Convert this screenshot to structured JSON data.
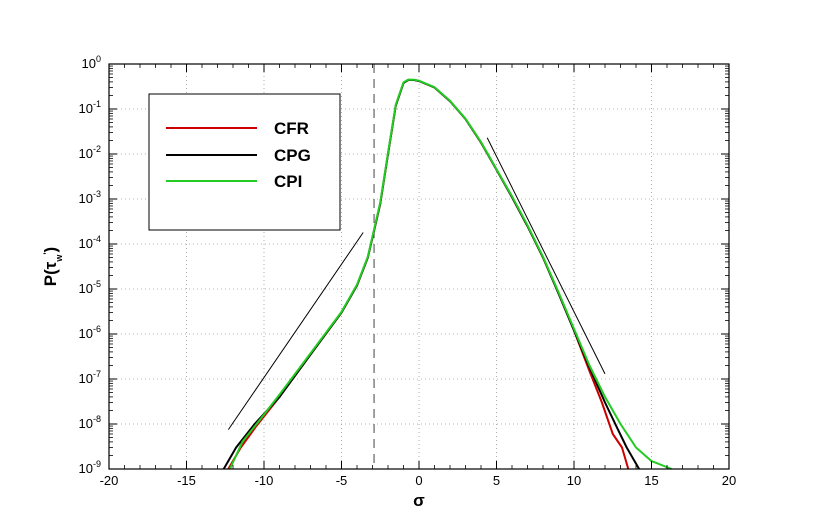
{
  "chart_data": {
    "type": "line",
    "xlabel": "σ",
    "ylabel": {
      "base": "P(τ",
      "sub": "w",
      "sup": "'",
      "close": ")"
    },
    "xlim": [
      -20,
      20
    ],
    "ylim_exponent": [
      -9,
      0
    ],
    "yscale": "log",
    "grid": true,
    "legend_position": "top-left",
    "xticks": [
      -20,
      -15,
      -10,
      -5,
      0,
      5,
      10,
      15,
      20
    ],
    "yticks": [
      {
        "base": "10",
        "exp": "0"
      },
      {
        "base": "10",
        "exp": "-1"
      },
      {
        "base": "10",
        "exp": "-2"
      },
      {
        "base": "10",
        "exp": "-3"
      },
      {
        "base": "10",
        "exp": "-4"
      },
      {
        "base": "10",
        "exp": "-5"
      },
      {
        "base": "10",
        "exp": "-6"
      },
      {
        "base": "10",
        "exp": "-7"
      },
      {
        "base": "10",
        "exp": "-8"
      },
      {
        "base": "10",
        "exp": "-9"
      }
    ],
    "reference_vline_x": -2.9,
    "reference_slopes": [
      {
        "from": [
          -12.3,
          7.5e-09
        ],
        "to": [
          -3.6,
          0.00018
        ]
      },
      {
        "from": [
          4.4,
          0.023
        ],
        "to": [
          12.0,
          1.3e-07
        ]
      }
    ],
    "series": [
      {
        "name": "CFR",
        "color": "#cc0000",
        "points": [
          [
            -12.3,
            1e-09
          ],
          [
            -11.5,
            3e-09
          ],
          [
            -10.5,
            9e-09
          ],
          [
            -9,
            4e-08
          ],
          [
            -7,
            3.5e-07
          ],
          [
            -5,
            3e-06
          ],
          [
            -4,
            1.2e-05
          ],
          [
            -3.3,
            5e-05
          ],
          [
            -2.9,
            0.0002
          ],
          [
            -2.5,
            0.0008
          ],
          [
            -2,
            0.01
          ],
          [
            -1.5,
            0.12
          ],
          [
            -1,
            0.38
          ],
          [
            -0.7,
            0.44
          ],
          [
            -0.3,
            0.44
          ],
          [
            0,
            0.42
          ],
          [
            1,
            0.3
          ],
          [
            2,
            0.15
          ],
          [
            3,
            0.06
          ],
          [
            4,
            0.018
          ],
          [
            5,
            0.0045
          ],
          [
            6,
            0.0011
          ],
          [
            7,
            0.00025
          ],
          [
            8,
            5e-05
          ],
          [
            9,
            8e-06
          ],
          [
            10,
            1.2e-06
          ],
          [
            11,
            1.5e-07
          ],
          [
            11.8,
            3e-08
          ],
          [
            12.5,
            6e-09
          ],
          [
            13.1,
            3e-09
          ],
          [
            13.5,
            1e-09
          ]
        ]
      },
      {
        "name": "CPG",
        "color": "#000000",
        "points": [
          [
            -12.6,
            1e-09
          ],
          [
            -11.8,
            3e-09
          ],
          [
            -10.6,
            1e-08
          ],
          [
            -9,
            4e-08
          ],
          [
            -7,
            3.5e-07
          ],
          [
            -5,
            3e-06
          ],
          [
            -4,
            1.2e-05
          ],
          [
            -3.3,
            5e-05
          ],
          [
            -2.9,
            0.0002
          ],
          [
            -2.5,
            0.0008
          ],
          [
            -2,
            0.01
          ],
          [
            -1.5,
            0.12
          ],
          [
            -1,
            0.38
          ],
          [
            -0.7,
            0.44
          ],
          [
            -0.3,
            0.44
          ],
          [
            0,
            0.42
          ],
          [
            1,
            0.3
          ],
          [
            2,
            0.15
          ],
          [
            3,
            0.06
          ],
          [
            4,
            0.018
          ],
          [
            5,
            0.0045
          ],
          [
            6,
            0.0011
          ],
          [
            7,
            0.00025
          ],
          [
            8,
            5e-05
          ],
          [
            9,
            8e-06
          ],
          [
            10,
            1.2e-06
          ],
          [
            11,
            1.8e-07
          ],
          [
            12,
            3e-08
          ],
          [
            12.8,
            8e-09
          ],
          [
            13.4,
            3e-09
          ],
          [
            14.2,
            1e-09
          ]
        ]
      },
      {
        "name": "CPI",
        "color": "#22cc22",
        "points": [
          [
            -12.2,
            1e-09
          ],
          [
            -11.4,
            4e-09
          ],
          [
            -10.3,
            1.2e-08
          ],
          [
            -9,
            4.5e-08
          ],
          [
            -7,
            3.7e-07
          ],
          [
            -5,
            3.1e-06
          ],
          [
            -4,
            1.25e-05
          ],
          [
            -3.3,
            5.2e-05
          ],
          [
            -2.9,
            0.00021
          ],
          [
            -2.5,
            0.00085
          ],
          [
            -2,
            0.0105
          ],
          [
            -1.5,
            0.125
          ],
          [
            -1,
            0.39
          ],
          [
            -0.7,
            0.45
          ],
          [
            -0.3,
            0.445
          ],
          [
            0,
            0.425
          ],
          [
            1,
            0.305
          ],
          [
            2,
            0.152
          ],
          [
            3,
            0.061
          ],
          [
            4,
            0.0185
          ],
          [
            5,
            0.0046
          ],
          [
            6,
            0.00115
          ],
          [
            7,
            0.00026
          ],
          [
            8,
            5.2e-05
          ],
          [
            9,
            8.5e-06
          ],
          [
            10,
            1.3e-06
          ],
          [
            11,
            2e-07
          ],
          [
            12,
            4e-08
          ],
          [
            13,
            1e-08
          ],
          [
            14,
            3e-09
          ],
          [
            15,
            1.5e-09
          ],
          [
            16.3,
            1e-09
          ]
        ]
      }
    ]
  }
}
